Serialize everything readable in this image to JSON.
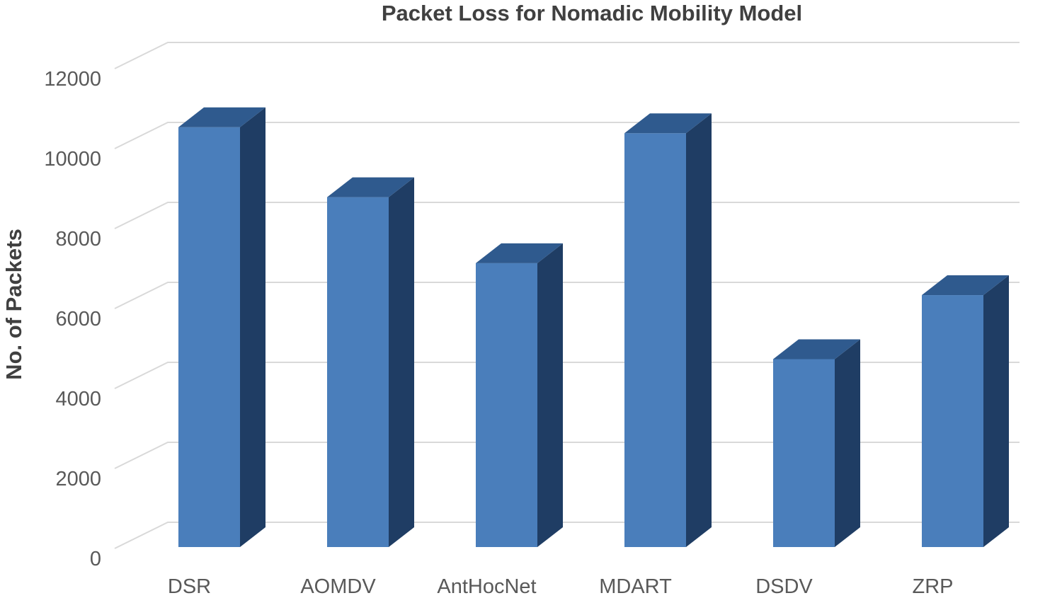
{
  "chart_data": {
    "type": "bar",
    "style": "3d-column",
    "title": "Packet Loss for Nomadic Mobility Model",
    "xlabel": "",
    "ylabel": "No. of Packets",
    "categories": [
      "DSR",
      "AOMDV",
      "AntHocNet",
      "MDART",
      "DSDV",
      "ZRP"
    ],
    "values": [
      10500,
      8750,
      7100,
      10350,
      4700,
      6300
    ],
    "ylim": [
      0,
      12000
    ],
    "yticks": [
      "0",
      "2000",
      "4000",
      "6000",
      "8000",
      "10000",
      "12000"
    ],
    "grid": true,
    "legend": "none",
    "colors": {
      "bar_front": "#4a7ebb",
      "bar_top": "#2f5a8e",
      "bar_side": "#1f3d64",
      "grid": "#d9d9d9",
      "text": "#595959",
      "title": "#404040"
    }
  }
}
